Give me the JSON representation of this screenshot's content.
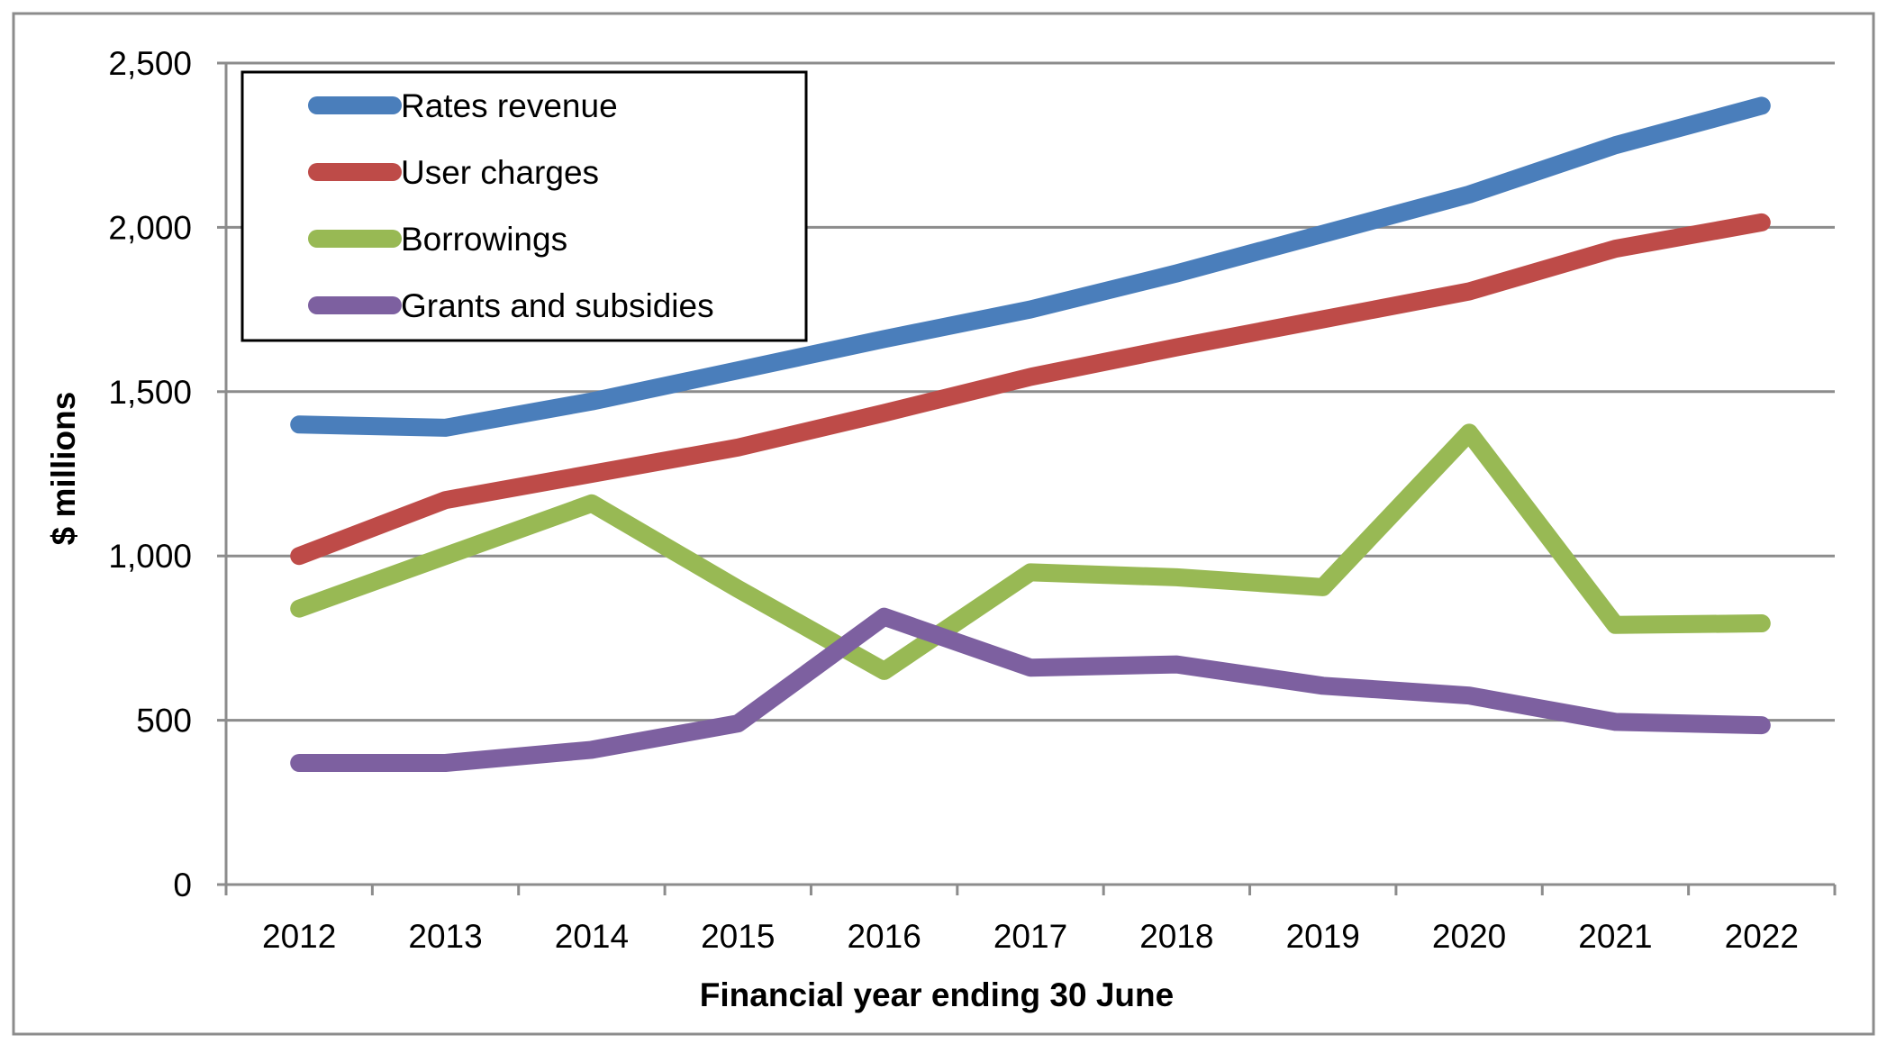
{
  "chart_data": {
    "type": "line",
    "title": "",
    "xlabel": "Financial year ending 30 June",
    "ylabel": "$ millions",
    "categories": [
      "2012",
      "2013",
      "2014",
      "2015",
      "2016",
      "2017",
      "2018",
      "2019",
      "2020",
      "2021",
      "2022"
    ],
    "ylim": [
      0,
      2500
    ],
    "yticks": [
      0,
      500,
      1000,
      1500,
      2000,
      2500
    ],
    "ytick_labels": [
      "0",
      "500",
      "1,000",
      "1,500",
      "2,000",
      "2,500"
    ],
    "grid": "horizontal",
    "legend_position": "top-left",
    "series": [
      {
        "name": "Rates revenue",
        "color": "#4a7ebb",
        "values": [
          1400,
          1390,
          1470,
          1565,
          1660,
          1750,
          1860,
          1980,
          2100,
          2250,
          2370
        ]
      },
      {
        "name": "User charges",
        "color": "#be4b48",
        "values": [
          1000,
          1170,
          1250,
          1330,
          1435,
          1545,
          1635,
          1720,
          1805,
          1935,
          2015
        ]
      },
      {
        "name": "Borrowings",
        "color": "#98b954",
        "values": [
          840,
          1000,
          1160,
          900,
          650,
          950,
          935,
          905,
          1375,
          790,
          795
        ]
      },
      {
        "name": "Grants and subsidies",
        "color": "#7d60a0",
        "values": [
          370,
          370,
          410,
          490,
          815,
          660,
          670,
          605,
          575,
          495,
          485
        ]
      }
    ]
  }
}
